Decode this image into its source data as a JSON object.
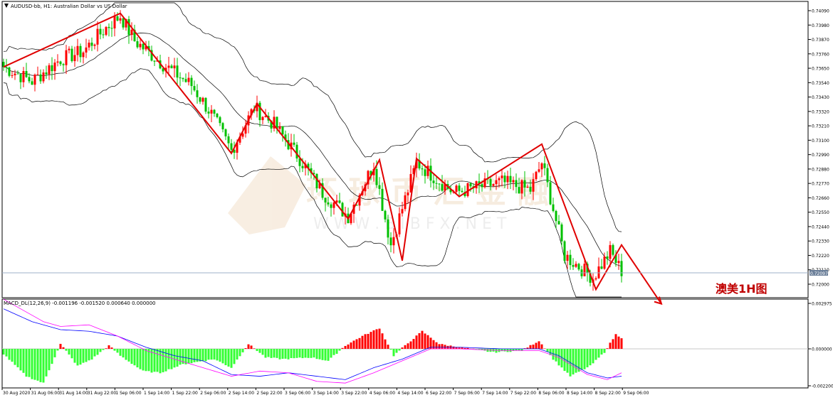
{
  "header": {
    "symbol_title": "AUDUSD-bb, H1: Australian Dollar vs US Dollar"
  },
  "indicator_title": "MACD_DL(12,26,9) -0.001196 -0.001520 0.000640 0.000000",
  "annotation": "澳美1H图",
  "watermark": {
    "cn": "环  球  币  汇  金  融",
    "url": "W W W . B I B F X . N E T"
  },
  "current_price_label": "0.72097",
  "colors": {
    "bull": "#ff0000",
    "bear": "#00c000",
    "zigzag": "#e00000",
    "macd_pos": "#ff0000",
    "macd_neg": "#33ff33",
    "macd_line": "#0000ff",
    "signal_line": "#ff00ff",
    "bands": "#000000"
  },
  "chart_data": {
    "type": "candlestick",
    "price_axis": {
      "min": 0.72,
      "max": 0.7409,
      "ticks": [
        "0.74090",
        "0.73980",
        "0.73870",
        "0.73760",
        "0.73650",
        "0.73540",
        "0.73430",
        "0.73320",
        "0.73210",
        "0.73100",
        "0.72990",
        "0.72880",
        "0.72770",
        "0.72660",
        "0.72550",
        "0.72440",
        "0.72330",
        "0.72220",
        "0.72110",
        "0.72000"
      ]
    },
    "macd_axis": {
      "ticks": [
        "0.002975",
        "0.000000",
        "-0.002200"
      ]
    },
    "time_labels": [
      "30 Aug 2020",
      "31 Aug 06:00",
      "31 Aug 14:00",
      "31 Aug 22:00",
      "1 Sep 06:00",
      "1 Sep 14:00",
      "1 Sep 22:00",
      "2 Sep 06:00",
      "2 Sep 14:00",
      "2 Sep 22:00",
      "3 Sep 06:00",
      "3 Sep 14:00",
      "3 Sep 22:00",
      "4 Sep 06:00",
      "4 Sep 14:00",
      "6 Sep 22:00",
      "7 Sep 06:00",
      "7 Sep 14:00",
      "7 Sep 22:00",
      "8 Sep 06:00",
      "8 Sep 14:00",
      "8 Sep 22:00",
      "9 Sep 06:00"
    ],
    "close_anchors": [
      [
        0,
        0.7366
      ],
      [
        10,
        0.7355
      ],
      [
        20,
        0.7372
      ],
      [
        28,
        0.7378
      ],
      [
        36,
        0.7396
      ],
      [
        41,
        0.7405
      ],
      [
        46,
        0.7386
      ],
      [
        56,
        0.7368
      ],
      [
        66,
        0.7352
      ],
      [
        73,
        0.733
      ],
      [
        80,
        0.7302
      ],
      [
        88,
        0.7335
      ],
      [
        95,
        0.7322
      ],
      [
        104,
        0.7296
      ],
      [
        112,
        0.727
      ],
      [
        121,
        0.7252
      ],
      [
        130,
        0.7292
      ],
      [
        136,
        0.723
      ],
      [
        145,
        0.7293
      ],
      [
        158,
        0.727
      ],
      [
        175,
        0.7278
      ],
      [
        185,
        0.7272
      ],
      [
        189,
        0.7293
      ],
      [
        197,
        0.7222
      ],
      [
        207,
        0.7205
      ],
      [
        213,
        0.7225
      ],
      [
        217,
        0.721
      ]
    ],
    "zigzag": [
      [
        0,
        0.7366
      ],
      [
        41,
        0.7407
      ],
      [
        80,
        0.73
      ],
      [
        89,
        0.7338
      ],
      [
        121,
        0.725
      ],
      [
        132,
        0.7295
      ],
      [
        140,
        0.7218
      ],
      [
        145,
        0.7296
      ],
      [
        160,
        0.7267
      ],
      [
        189,
        0.7307
      ],
      [
        208,
        0.7196
      ],
      [
        217,
        0.723
      ],
      [
        231,
        0.7185
      ]
    ],
    "macd_hist_anchors": [
      [
        0,
        -0.0003
      ],
      [
        8,
        -0.0016
      ],
      [
        14,
        -0.002
      ],
      [
        20,
        0.0003
      ],
      [
        26,
        -0.001
      ],
      [
        31,
        -0.0006
      ],
      [
        37,
        0.0002
      ],
      [
        41,
        -0.0004
      ],
      [
        49,
        -0.0013
      ],
      [
        55,
        -0.0014
      ],
      [
        63,
        -0.0009
      ],
      [
        74,
        -0.0006
      ],
      [
        80,
        -0.0011
      ],
      [
        86,
        0.0003
      ],
      [
        92,
        -0.0005
      ],
      [
        98,
        -0.0006
      ],
      [
        108,
        -0.0005
      ],
      [
        114,
        -0.0007
      ],
      [
        120,
        0.0002
      ],
      [
        126,
        0.0008
      ],
      [
        132,
        0.0013
      ],
      [
        137,
        -0.0004
      ],
      [
        141,
        0.0002
      ],
      [
        147,
        0.0011
      ],
      [
        153,
        0.0003
      ],
      [
        160,
        0.0001
      ],
      [
        172,
        -0.0002
      ],
      [
        182,
        -0.0001
      ],
      [
        188,
        0.0005
      ],
      [
        193,
        -0.0006
      ],
      [
        199,
        -0.0016
      ],
      [
        206,
        -0.001
      ],
      [
        211,
        -0.0002
      ],
      [
        215,
        0.0009
      ],
      [
        217,
        0.0007
      ]
    ],
    "macd_line_anchors": [
      [
        0,
        0.0025
      ],
      [
        10,
        0.0017
      ],
      [
        20,
        0.0012
      ],
      [
        30,
        0.0011
      ],
      [
        40,
        0.0008
      ],
      [
        50,
        0.0001
      ],
      [
        60,
        -0.0004
      ],
      [
        70,
        -0.0007
      ],
      [
        80,
        -0.0015
      ],
      [
        90,
        -0.0016
      ],
      [
        100,
        -0.0014
      ],
      [
        110,
        -0.0016
      ],
      [
        120,
        -0.0018
      ],
      [
        130,
        -0.0011
      ],
      [
        140,
        -0.0006
      ],
      [
        150,
        0.0001
      ],
      [
        160,
        0.0001
      ],
      [
        175,
        0.0
      ],
      [
        188,
        0.0
      ],
      [
        195,
        -0.0004
      ],
      [
        205,
        -0.0014
      ],
      [
        212,
        -0.0017
      ],
      [
        217,
        -0.0016
      ]
    ],
    "signal_line_anchors": [
      [
        0,
        0.0031
      ],
      [
        8,
        0.0023
      ],
      [
        14,
        0.0017
      ],
      [
        20,
        0.0014
      ],
      [
        30,
        0.0015
      ],
      [
        40,
        0.0008
      ],
      [
        50,
        -0.0001
      ],
      [
        60,
        -0.0006
      ],
      [
        70,
        -0.0011
      ],
      [
        80,
        -0.0016
      ],
      [
        90,
        -0.0013
      ],
      [
        100,
        -0.0014
      ],
      [
        110,
        -0.0019
      ],
      [
        120,
        -0.002
      ],
      [
        130,
        -0.0014
      ],
      [
        140,
        -0.0007
      ],
      [
        150,
        0.0
      ],
      [
        160,
        0.0
      ],
      [
        175,
        -0.0001
      ],
      [
        188,
        -0.0001
      ],
      [
        195,
        -0.0005
      ],
      [
        205,
        -0.0015
      ],
      [
        212,
        -0.0018
      ],
      [
        217,
        -0.0014
      ]
    ],
    "macd_range": [
      -0.0022,
      0.002975
    ],
    "bars_visible": 232
  }
}
